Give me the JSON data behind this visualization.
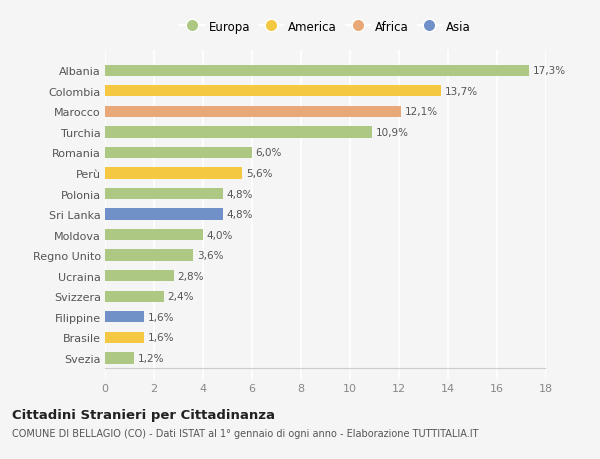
{
  "countries": [
    "Albania",
    "Colombia",
    "Marocco",
    "Turchia",
    "Romania",
    "Perù",
    "Polonia",
    "Sri Lanka",
    "Moldova",
    "Regno Unito",
    "Ucraina",
    "Svizzera",
    "Filippine",
    "Brasile",
    "Svezia"
  ],
  "values": [
    17.3,
    13.7,
    12.1,
    10.9,
    6.0,
    5.6,
    4.8,
    4.8,
    4.0,
    3.6,
    2.8,
    2.4,
    1.6,
    1.6,
    1.2
  ],
  "labels": [
    "17,3%",
    "13,7%",
    "12,1%",
    "10,9%",
    "6,0%",
    "5,6%",
    "4,8%",
    "4,8%",
    "4,0%",
    "3,6%",
    "2,8%",
    "2,4%",
    "1,6%",
    "1,6%",
    "1,2%"
  ],
  "bar_colors": [
    "#adc882",
    "#f5c842",
    "#e8a878",
    "#adc882",
    "#adc882",
    "#f5c842",
    "#adc882",
    "#7090c8",
    "#adc882",
    "#adc882",
    "#adc882",
    "#adc882",
    "#7090c8",
    "#f5c842",
    "#adc882"
  ],
  "legend": [
    {
      "label": "Europa",
      "color": "#adc882"
    },
    {
      "label": "America",
      "color": "#f5c842"
    },
    {
      "label": "Africa",
      "color": "#e8a878"
    },
    {
      "label": "Asia",
      "color": "#7090c8"
    }
  ],
  "xlim": [
    0,
    18
  ],
  "xticks": [
    0,
    2,
    4,
    6,
    8,
    10,
    12,
    14,
    16,
    18
  ],
  "title": "Cittadini Stranieri per Cittadinanza",
  "subtitle": "COMUNE DI BELLAGIO (CO) - Dati ISTAT al 1° gennaio di ogni anno - Elaborazione TUTTITALIA.IT",
  "bg_color": "#f5f5f5",
  "grid_color": "#ffffff",
  "bar_height": 0.55
}
